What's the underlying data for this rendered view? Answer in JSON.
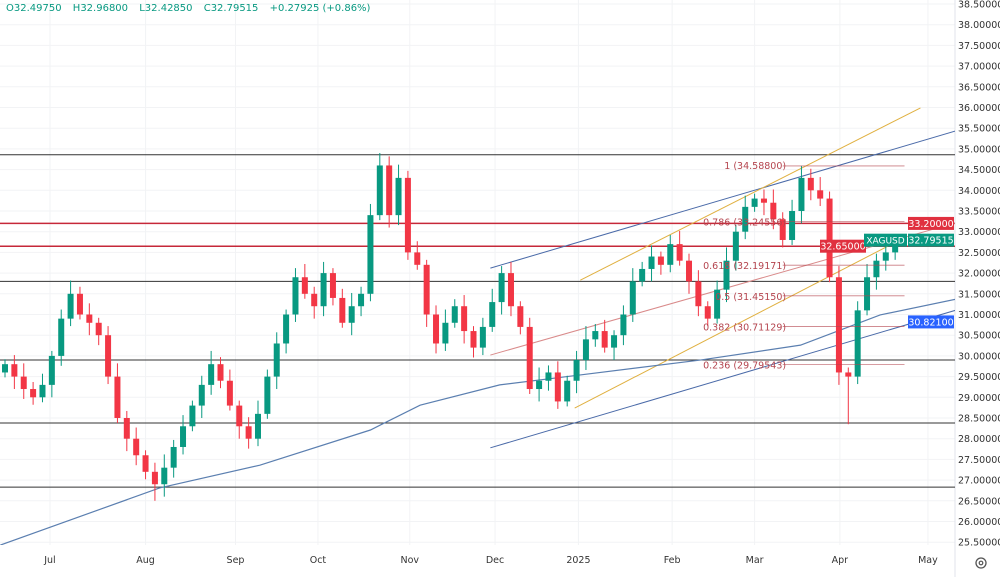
{
  "header": {
    "open_label": "O",
    "open": "32.49750",
    "high_label": "H",
    "high": "32.96800",
    "low_label": "L",
    "low": "32.42850",
    "close_label": "C",
    "close": "32.79515",
    "change": "+0.27925 (+0.86%)"
  },
  "chart_data": {
    "type": "candlestick",
    "symbol": "XAGUSD",
    "ylim": [
      25.5,
      38.5
    ],
    "y_ticks": [
      "25.50000",
      "26.00000",
      "26.50000",
      "27.00000",
      "27.50000",
      "28.00000",
      "28.50000",
      "29.00000",
      "29.50000",
      "30.00000",
      "30.50000",
      "31.00000",
      "31.50000",
      "32.00000",
      "32.50000",
      "33.00000",
      "33.50000",
      "34.00000",
      "34.50000",
      "35.00000",
      "35.50000",
      "36.00000",
      "36.50000",
      "37.00000",
      "37.50000",
      "38.00000",
      "38.50000"
    ],
    "x_labels": [
      {
        "label": "Jul",
        "idx": 4.8
      },
      {
        "label": "Aug",
        "idx": 15
      },
      {
        "label": "Sep",
        "idx": 24.6
      },
      {
        "label": "Oct",
        "idx": 33.4
      },
      {
        "label": "Nov",
        "idx": 43.2
      },
      {
        "label": "Dec",
        "idx": 52.3
      },
      {
        "label": "2025",
        "idx": 61.2
      },
      {
        "label": "Feb",
        "idx": 71.2
      },
      {
        "label": "Mar",
        "idx": 80
      },
      {
        "label": "Apr",
        "idx": 89.1
      },
      {
        "label": "May",
        "idx": 98.5
      }
    ],
    "closes": [
      29.8,
      29.5,
      29.2,
      29.0,
      29.3,
      30.0,
      30.9,
      31.5,
      31.0,
      30.8,
      30.5,
      29.5,
      28.5,
      28.0,
      27.6,
      27.2,
      26.9,
      27.3,
      27.8,
      28.3,
      28.8,
      29.3,
      29.8,
      29.4,
      28.8,
      28.3,
      28.0,
      28.6,
      29.5,
      30.3,
      31.0,
      31.9,
      31.5,
      31.2,
      32.0,
      31.4,
      30.8,
      31.2,
      31.5,
      33.4,
      34.6,
      33.4,
      34.3,
      32.5,
      32.2,
      31.0,
      30.3,
      30.8,
      31.2,
      30.6,
      30.2,
      30.7,
      31.3,
      32.0,
      31.2,
      30.7,
      29.2,
      29.4,
      29.6,
      28.9,
      29.4,
      29.9,
      30.4,
      30.6,
      30.2,
      30.5,
      31.0,
      31.8,
      32.1,
      32.4,
      32.2,
      32.7,
      32.3,
      31.8,
      31.2,
      30.9,
      31.6,
      32.3,
      33.0,
      33.6,
      33.8,
      33.7,
      33.3,
      32.8,
      33.5,
      34.3,
      34.0,
      33.8,
      31.9,
      29.6,
      29.5,
      31.1,
      31.9,
      32.3,
      32.5,
      32.79515
    ],
    "first_open": 29.6,
    "wick_overrides": [
      {
        "idx": 90,
        "low": 28.35
      },
      {
        "idx": 40,
        "high": 34.9
      },
      {
        "idx": 16,
        "low": 26.5
      },
      {
        "idx": 85,
        "high": 34.59
      }
    ],
    "horizontal_levels": [
      {
        "price": 34.86,
        "color": "#333333"
      },
      {
        "price": 33.2,
        "color": "#c62839"
      },
      {
        "price": 32.65,
        "color": "#c62839"
      },
      {
        "price": 31.8,
        "color": "#333333"
      },
      {
        "price": 29.9,
        "color": "#333333"
      },
      {
        "price": 28.38,
        "color": "#333333"
      },
      {
        "price": 26.83,
        "color": "#333333"
      }
    ],
    "trend_lines": [
      {
        "name": "channel-upper-blue",
        "color": "#4a6aa8",
        "points": [
          [
            51.8,
            32.12
          ],
          [
            106.2,
            35.75
          ]
        ]
      },
      {
        "name": "channel-lower-blue",
        "color": "#4a6aa8",
        "points": [
          [
            51.8,
            27.78
          ],
          [
            106.2,
            31.42
          ]
        ]
      },
      {
        "name": "channel-upper-orange",
        "color": "#e0b040",
        "points": [
          [
            61.4,
            31.83
          ],
          [
            97.7,
            35.99
          ]
        ]
      },
      {
        "name": "channel-lower-orange",
        "color": "#e0b040",
        "points": [
          [
            60.8,
            28.74
          ],
          [
            95.5,
            32.8
          ]
        ]
      },
      {
        "name": "mid-line-red",
        "color": "#d98a8a",
        "points": [
          [
            51.8,
            30.02
          ],
          [
            106.2,
            33.52
          ]
        ]
      }
    ],
    "moving_average": {
      "color": "#5b7fb0",
      "points": [
        [
          -0.5,
          25.43
        ],
        [
          16.5,
          26.81
        ],
        [
          27.2,
          27.36
        ],
        [
          39,
          28.21
        ],
        [
          44.3,
          28.81
        ],
        [
          52.8,
          29.3
        ],
        [
          61.4,
          29.54
        ],
        [
          74.2,
          29.9
        ],
        [
          84.9,
          30.26
        ],
        [
          93.4,
          30.99
        ],
        [
          106.2,
          31.59
        ]
      ]
    },
    "fibonacci": [
      {
        "label": "1 (34.58800)",
        "price": 34.588
      },
      {
        "label": "0.786 (33.24556)",
        "price": 33.2456
      },
      {
        "label": "0.618 (32.19171)",
        "price": 32.1917
      },
      {
        "label": "0.5 (31.45150)",
        "price": 31.4515
      },
      {
        "label": "0.382 (30.71129)",
        "price": 30.7113
      },
      {
        "label": "0.236 (29.79543)",
        "price": 29.7954
      }
    ],
    "price_tags": [
      {
        "text": "33.20000",
        "price": 33.2,
        "color": "#e0303f"
      },
      {
        "text": "32.65000",
        "price": 32.65,
        "color": "#e0303f"
      },
      {
        "text": "32.79515",
        "price": 32.79515,
        "color": "#089981",
        "symbol": "XAGUSD"
      },
      {
        "text": "30.82100",
        "price": 30.821,
        "color": "#2962ff"
      }
    ],
    "up_color": "#089981",
    "down_color": "#f23645"
  },
  "settings_icon": "gear-icon"
}
